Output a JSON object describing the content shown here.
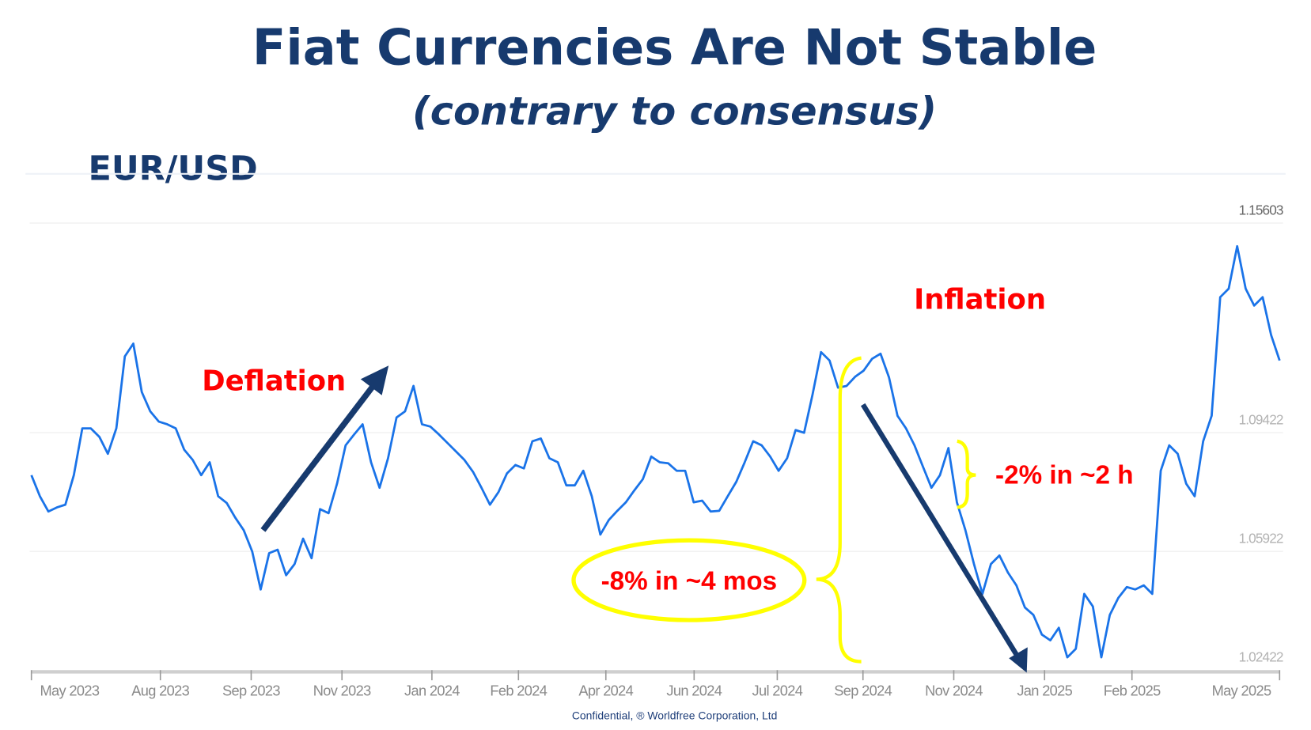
{
  "slide": {
    "title": "Fiat Currencies Are Not Stable",
    "subtitle": "(contrary to consensus)",
    "pair_label": "EUR/USD",
    "footer": "Confidential, ® Worldfree Corporation, Ltd"
  },
  "annotations": {
    "deflation": "Deflation",
    "inflation": "Inflation",
    "drop_long": "-8% in ~4 mos",
    "drop_short": "-2% in ~2 h",
    "annotation_color": "#ff0000",
    "arrow_color": "#173a6e",
    "highlight_color": "#ffff00"
  },
  "chart_data": {
    "type": "line",
    "title": "",
    "xlabel": "",
    "ylabel": "",
    "line_color": "#1a73e8",
    "grid": true,
    "y_ticks": [
      "1.15603",
      "1.09422",
      "1.05922",
      "1.02422"
    ],
    "y_tick_values": [
      1.15603,
      1.09422,
      1.05922,
      1.02422
    ],
    "ylim": [
      1.02422,
      1.15603
    ],
    "x_ticks": [
      "May 2023",
      "Aug 2023",
      "Sep 2023",
      "Nov 2023",
      "Jan 2024",
      "Feb 2024",
      "Apr 2024",
      "Jun 2024",
      "Jul 2024",
      "Sep 2024",
      "Nov 2024",
      "Jan 2025",
      "Feb 2025",
      "May 2025"
    ],
    "series": [
      {
        "values": [
          1.0817,
          1.0755,
          1.071,
          1.0722,
          1.073,
          1.0817,
          1.0955,
          1.0955,
          1.093,
          1.088,
          1.0955,
          1.1167,
          1.1205,
          1.1062,
          1.1005,
          1.0975,
          1.0967,
          1.0955,
          1.0892,
          1.0862,
          1.0817,
          1.0855,
          1.0755,
          1.0735,
          1.0692,
          1.0655,
          1.0592,
          1.048,
          1.0587,
          1.0597,
          1.0522,
          1.0555,
          1.063,
          1.0572,
          1.0717,
          1.0705,
          1.0792,
          1.0905,
          1.0937,
          1.0967,
          1.0855,
          1.078,
          1.0867,
          1.0987,
          1.1005,
          1.108,
          1.0967,
          1.096,
          1.0937,
          1.0912,
          1.0887,
          1.0862,
          1.0827,
          1.078,
          1.073,
          1.0767,
          1.0822,
          1.0847,
          1.0837,
          1.0917,
          1.0925,
          1.0867,
          1.0855,
          1.0787,
          1.0787,
          1.083,
          1.0755,
          1.0642,
          1.0685,
          1.0712,
          1.0737,
          1.0772,
          1.0805,
          1.0872,
          1.0855,
          1.0852,
          1.083,
          1.083,
          1.0737,
          1.0742,
          1.071,
          1.0712,
          1.0755,
          1.0797,
          1.0855,
          1.0917,
          1.0905,
          1.0872,
          1.083,
          1.0867,
          1.095,
          1.0942,
          1.1055,
          1.118,
          1.1155,
          1.1075,
          1.108,
          1.1107,
          1.1125,
          1.116,
          1.1175,
          1.1105,
          1.0992,
          1.0955,
          1.0905,
          1.0842,
          1.078,
          1.0817,
          1.0897,
          1.0737,
          1.0655,
          1.0555,
          1.0467,
          1.0555,
          1.058,
          1.053,
          1.0492,
          1.0427,
          1.0405,
          1.0347,
          1.033,
          1.0367,
          1.028,
          1.0305,
          1.0467,
          1.043,
          1.028,
          1.0405,
          1.0455,
          1.0487,
          1.048,
          1.0492,
          1.0467,
          1.083,
          1.0905,
          1.088,
          1.0792,
          1.0755,
          1.0917,
          1.0992,
          1.1342,
          1.1367,
          1.1492,
          1.1367,
          1.1317,
          1.1342,
          1.123,
          1.1155
        ]
      }
    ]
  }
}
